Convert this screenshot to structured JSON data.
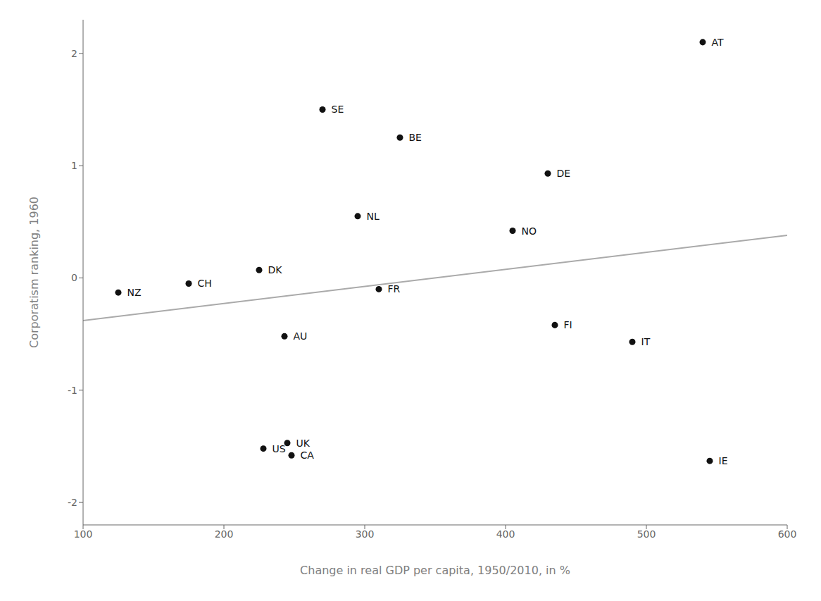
{
  "chart_data": {
    "type": "scatter",
    "xlabel": "Change in real GDP per capita, 1950/2010, in %",
    "ylabel": "Corporatism ranking, 1960",
    "labels": [
      "AT",
      "SE",
      "BE",
      "DE",
      "NL",
      "NO",
      "DK",
      "CH",
      "FR",
      "NZ",
      "FI",
      "AU",
      "IT",
      "US",
      "UK",
      "CA",
      "IE"
    ],
    "x": [
      540,
      270,
      325,
      430,
      295,
      405,
      225,
      175,
      310,
      125,
      435,
      243,
      490,
      228,
      245,
      248,
      545
    ],
    "values": [
      2.1,
      1.5,
      1.25,
      0.93,
      0.55,
      0.42,
      0.07,
      -0.05,
      -0.1,
      -0.13,
      -0.42,
      -0.52,
      -0.57,
      -1.52,
      -1.47,
      -1.58,
      -1.63
    ],
    "color": "#111111",
    "trendline": {
      "x": [
        100,
        600
      ],
      "values": [
        -0.38,
        0.38
      ],
      "color": "#aaaaaa"
    },
    "xlim": [
      100,
      600
    ],
    "ylim": [
      -2.2,
      2.3
    ],
    "xticks": [
      100,
      200,
      300,
      400,
      500,
      600
    ],
    "yticks": [
      -2,
      -1,
      0,
      1,
      2
    ],
    "grid": false
  }
}
